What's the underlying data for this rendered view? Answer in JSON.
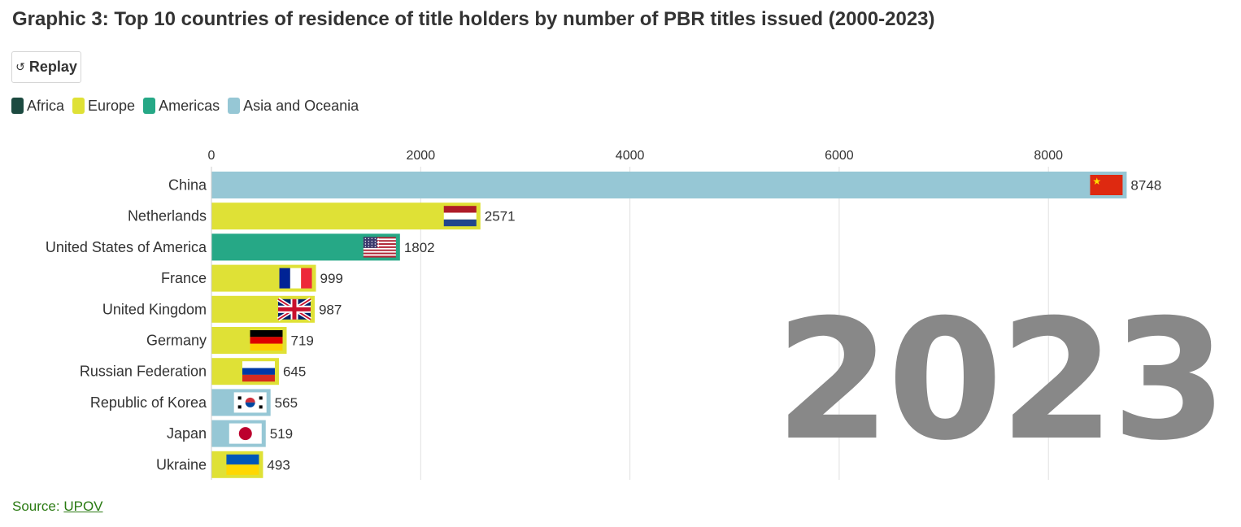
{
  "header": {
    "title": "Graphic 3: Top 10 countries of residence of title holders by number of PBR titles issued (2000-2023)"
  },
  "controls": {
    "replay_label": "Replay",
    "replay_icon": "replay-icon"
  },
  "legend": [
    {
      "label": "Africa",
      "color": "#1c4a40"
    },
    {
      "label": "Europe",
      "color": "#dfe136"
    },
    {
      "label": "Americas",
      "color": "#26a886"
    },
    {
      "label": "Asia and Oceania",
      "color": "#96c7d5"
    }
  ],
  "chart_data": {
    "type": "bar",
    "orientation": "horizontal",
    "title": "Graphic 3: Top 10 countries of residence of title holders by number of PBR titles issued (2000-2023)",
    "year_label": "2023",
    "xlim": [
      0,
      9500
    ],
    "xticks": [
      0,
      2000,
      4000,
      6000,
      8000
    ],
    "xtick_labels": [
      "0",
      "2000",
      "4000",
      "6000",
      "8000"
    ],
    "grid": true,
    "legend_position": "top-left",
    "categories": [
      "China",
      "Netherlands",
      "United States of America",
      "France",
      "United Kingdom",
      "Germany",
      "Russian Federation",
      "Republic of Korea",
      "Japan",
      "Ukraine"
    ],
    "values": [
      8748,
      2571,
      1802,
      999,
      987,
      719,
      645,
      565,
      519,
      493
    ],
    "value_labels": [
      "8748",
      "2571",
      "1802",
      "999",
      "987",
      "719",
      "645",
      "565",
      "519",
      "493"
    ],
    "regions": [
      "Asia and Oceania",
      "Europe",
      "Americas",
      "Europe",
      "Europe",
      "Europe",
      "Europe",
      "Asia and Oceania",
      "Asia and Oceania",
      "Europe"
    ],
    "flags": [
      "cn",
      "nl",
      "us",
      "fr",
      "gb",
      "de",
      "ru",
      "kr",
      "jp",
      "ua"
    ]
  },
  "colors": {
    "region": {
      "Africa": "#1c4a40",
      "Europe": "#dfe136",
      "Americas": "#26a886",
      "Asia and Oceania": "#96c7d5"
    },
    "year_label": "#888888",
    "grid": "#e0e0e0",
    "text": "#333333",
    "source_link": "#2a7a12"
  },
  "footer": {
    "source_prefix": "Source:",
    "source_link": "UPOV"
  }
}
